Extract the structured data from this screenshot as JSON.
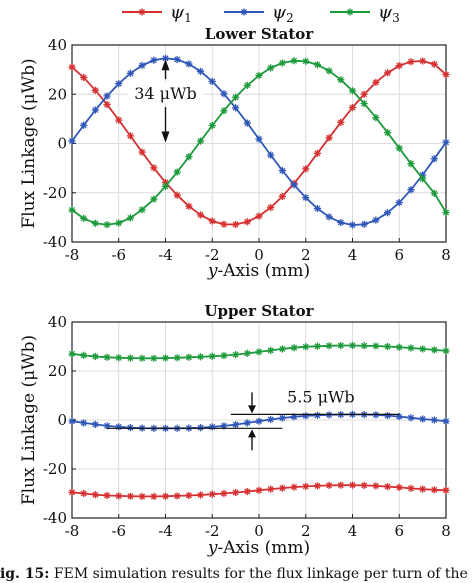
{
  "legend": {
    "items": [
      {
        "label": "ψ1",
        "color": "#d62f2f"
      },
      {
        "label": "ψ2",
        "color": "#2f56b8"
      },
      {
        "label": "ψ3",
        "color": "#1c9a3a"
      }
    ]
  },
  "caption": {
    "label": "Fig. 15:",
    "text": "FEM simulation results for the flux linkage per turn of the"
  },
  "chart_data": [
    {
      "type": "line",
      "title": "Lower Stator",
      "xlabel": "y-Axis (mm)",
      "ylabel": "Flux Linkage (μWb)",
      "xlim": [
        -8,
        8
      ],
      "ylim": [
        -40,
        40
      ],
      "xticks": [
        "-8",
        "-6",
        "-4",
        "-2",
        "0",
        "2",
        "4",
        "6",
        "8"
      ],
      "yticks": [
        "-40",
        "-20",
        "0",
        "20",
        "40"
      ],
      "grid": true,
      "marker": "asterisk",
      "x": [
        -8,
        -7.5,
        -7,
        -6.5,
        -6,
        -5.5,
        -5,
        -4.5,
        -4,
        -3.5,
        -3,
        -2.5,
        -2,
        -1.5,
        -1,
        -0.5,
        0,
        0.5,
        1,
        1.5,
        2,
        2.5,
        3,
        3.5,
        4,
        4.5,
        5,
        5.5,
        6,
        6.5,
        7,
        7.5,
        8
      ],
      "series": [
        {
          "name": "ψ1",
          "color": "#d62f2f",
          "values": [
            31.0,
            26.8,
            21.6,
            15.8,
            9.5,
            3.1,
            -3.5,
            -9.9,
            -15.8,
            -21.0,
            -25.5,
            -29.0,
            -31.5,
            -32.8,
            -32.9,
            -31.8,
            -29.5,
            -26.0,
            -21.5,
            -16.2,
            -10.3,
            -4.0,
            2.3,
            8.6,
            14.6,
            20.0,
            24.8,
            28.7,
            31.6,
            33.2,
            33.5,
            32.2,
            28.0
          ]
        },
        {
          "name": "ψ2",
          "color": "#2f56b8",
          "values": [
            1.0,
            7.4,
            13.6,
            19.3,
            24.3,
            28.5,
            31.7,
            33.8,
            34.6,
            34.1,
            32.3,
            29.3,
            25.2,
            20.2,
            14.5,
            8.3,
            1.8,
            -4.7,
            -11.0,
            -16.8,
            -22.0,
            -26.4,
            -29.8,
            -32.1,
            -33.1,
            -32.8,
            -31.1,
            -28.1,
            -24.0,
            -18.8,
            -12.8,
            -6.2,
            0.5
          ]
        },
        {
          "name": "ψ3",
          "color": "#1c9a3a",
          "values": [
            -27.0,
            -30.4,
            -32.4,
            -33.0,
            -32.3,
            -30.2,
            -26.9,
            -22.6,
            -17.4,
            -11.6,
            -5.4,
            1.0,
            7.3,
            13.3,
            18.8,
            23.6,
            27.6,
            30.7,
            32.7,
            33.6,
            33.4,
            32.0,
            29.5,
            25.9,
            21.4,
            16.2,
            10.5,
            4.4,
            -1.9,
            -8.2,
            -14.3,
            -20.2,
            -28.0
          ]
        }
      ],
      "annotations": [
        {
          "text": "34 μWb",
          "x": -4
        }
      ]
    },
    {
      "type": "line",
      "title": "Upper Stator",
      "xlabel": "y-Axis (mm)",
      "ylabel": "Flux Linkage (μWb)",
      "xlim": [
        -8,
        8
      ],
      "ylim": [
        -40,
        40
      ],
      "xticks": [
        "-8",
        "-6",
        "-4",
        "-2",
        "0",
        "2",
        "4",
        "6",
        "8"
      ],
      "yticks": [
        "-40",
        "-20",
        "0",
        "20",
        "40"
      ],
      "grid": true,
      "marker": "asterisk",
      "x": [
        -8,
        -7.5,
        -7,
        -6.5,
        -6,
        -5.5,
        -5,
        -4.5,
        -4,
        -3.5,
        -3,
        -2.5,
        -2,
        -1.5,
        -1,
        -0.5,
        0,
        0.5,
        1,
        1.5,
        2,
        2.5,
        3,
        3.5,
        4,
        4.5,
        5,
        5.5,
        6,
        6.5,
        7,
        7.5,
        8
      ],
      "series": [
        {
          "name": "ψ1",
          "color": "#d62f2f",
          "values": [
            -29.5,
            -30.0,
            -30.5,
            -30.8,
            -31.0,
            -31.1,
            -31.2,
            -31.2,
            -31.1,
            -31.0,
            -30.8,
            -30.6,
            -30.3,
            -30.0,
            -29.6,
            -29.2,
            -28.7,
            -28.2,
            -27.8,
            -27.4,
            -27.1,
            -26.9,
            -26.7,
            -26.6,
            -26.6,
            -26.7,
            -26.9,
            -27.2,
            -27.5,
            -27.9,
            -28.2,
            -28.5,
            -28.7
          ]
        },
        {
          "name": "ψ2",
          "color": "#2f56b8",
          "values": [
            -0.5,
            -1.2,
            -1.8,
            -2.4,
            -2.8,
            -3.1,
            -3.3,
            -3.4,
            -3.4,
            -3.4,
            -3.3,
            -3.1,
            -2.8,
            -2.4,
            -1.9,
            -1.2,
            -0.5,
            0.2,
            0.8,
            1.3,
            1.7,
            1.9,
            2.1,
            2.2,
            2.3,
            2.2,
            2.1,
            1.8,
            1.4,
            0.9,
            0.4,
            0.0,
            -0.5
          ]
        },
        {
          "name": "ψ3",
          "color": "#1c9a3a",
          "values": [
            27.0,
            26.4,
            25.9,
            25.6,
            25.4,
            25.3,
            25.2,
            25.2,
            25.3,
            25.4,
            25.6,
            25.8,
            26.0,
            26.3,
            26.7,
            27.2,
            27.8,
            28.4,
            29.0,
            29.5,
            29.9,
            30.1,
            30.3,
            30.4,
            30.4,
            30.3,
            30.2,
            30.0,
            29.7,
            29.4,
            29.0,
            28.6,
            28.2
          ]
        }
      ],
      "annotations": [
        {
          "text": "5.5 μWb",
          "x": -0.3
        }
      ]
    }
  ]
}
